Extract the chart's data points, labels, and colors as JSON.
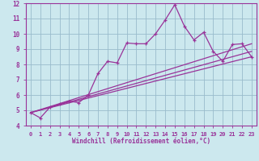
{
  "xlabel": "Windchill (Refroidissement éolien,°C)",
  "bg_color": "#cce8ee",
  "line_color": "#993399",
  "grid_color": "#99bbcc",
  "xlim": [
    -0.5,
    23.5
  ],
  "ylim": [
    4,
    12
  ],
  "xticks": [
    0,
    1,
    2,
    3,
    4,
    5,
    6,
    7,
    8,
    9,
    10,
    11,
    12,
    13,
    14,
    15,
    16,
    17,
    18,
    19,
    20,
    21,
    22,
    23
  ],
  "yticks": [
    4,
    5,
    6,
    7,
    8,
    9,
    10,
    11,
    12
  ],
  "line1_x": [
    0,
    1,
    2,
    3,
    4,
    5,
    6,
    7,
    8,
    9,
    10,
    11,
    12,
    13,
    14,
    15,
    16,
    17,
    18,
    19,
    20,
    21,
    22,
    23
  ],
  "line1_y": [
    4.85,
    4.5,
    5.2,
    5.4,
    5.6,
    5.5,
    6.0,
    7.4,
    8.2,
    8.1,
    9.4,
    9.35,
    9.35,
    10.0,
    10.9,
    11.9,
    10.5,
    9.6,
    10.1,
    8.85,
    8.2,
    9.3,
    9.35,
    8.5
  ],
  "line2_x": [
    0,
    23
  ],
  "line2_y": [
    4.85,
    9.35
  ],
  "line3_x": [
    0,
    23
  ],
  "line3_y": [
    4.85,
    8.85
  ],
  "line4_x": [
    0,
    23
  ],
  "line4_y": [
    4.85,
    8.5
  ]
}
